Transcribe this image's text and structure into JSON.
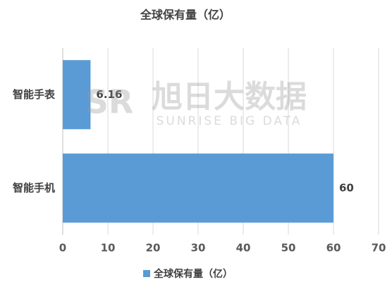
{
  "chart_data": {
    "type": "barh",
    "title": "全球保有量（亿）",
    "categories": [
      "智能手表",
      "智能手机"
    ],
    "series": [
      {
        "name": "全球保有量（亿）",
        "color": "#5b9bd5",
        "values": [
          6.16,
          60
        ]
      }
    ],
    "xlim": [
      0,
      70
    ],
    "xticks": [
      0,
      10,
      20,
      30,
      40,
      50,
      60,
      70
    ],
    "grid": true,
    "legend": "bottom",
    "watermark": {
      "logo": "SR",
      "text": "旭日大数据",
      "subtitle": "SUNRISE BIG DATA"
    }
  }
}
